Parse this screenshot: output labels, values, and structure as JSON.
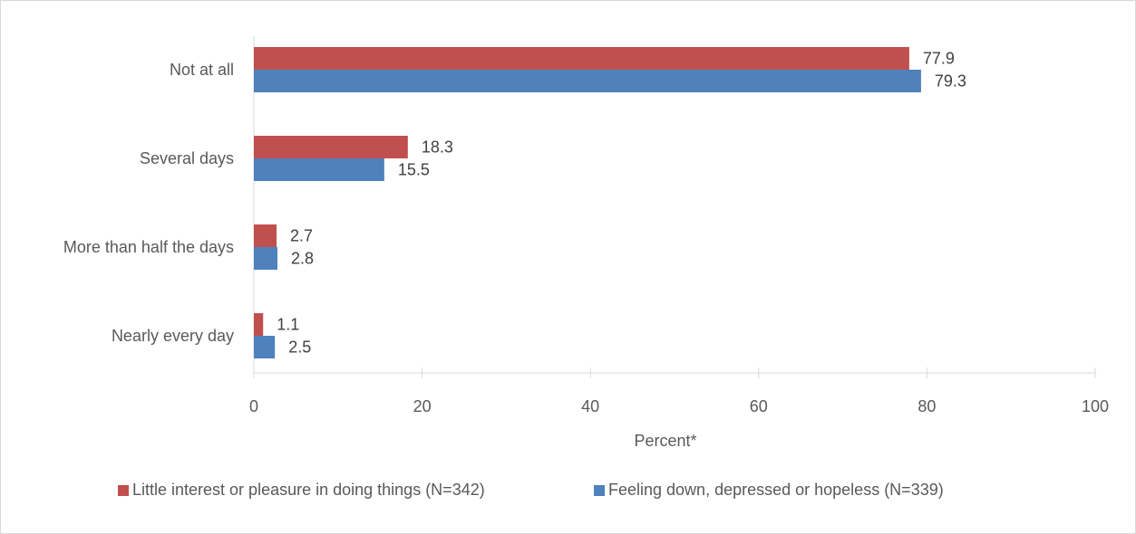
{
  "chart_data": {
    "type": "bar",
    "orientation": "horizontal",
    "categories": [
      "Not at all",
      "Several days",
      "More than half the days",
      "Nearly every day"
    ],
    "series": [
      {
        "name": "Little interest or pleasure in doing things (N=342)",
        "color": "#C0504D",
        "values": [
          77.9,
          18.3,
          2.7,
          1.1
        ]
      },
      {
        "name": "Feeling down, depressed or hopeless (N=339)",
        "color": "#4F81BD",
        "values": [
          79.3,
          15.5,
          2.8,
          2.5
        ]
      }
    ],
    "xlabel": "Percent*",
    "ylabel": "",
    "xlim": [
      0,
      100
    ],
    "xticks": [
      0,
      20,
      40,
      60,
      80,
      100
    ],
    "data_labels": true,
    "grid": false,
    "legend_position": "bottom"
  }
}
